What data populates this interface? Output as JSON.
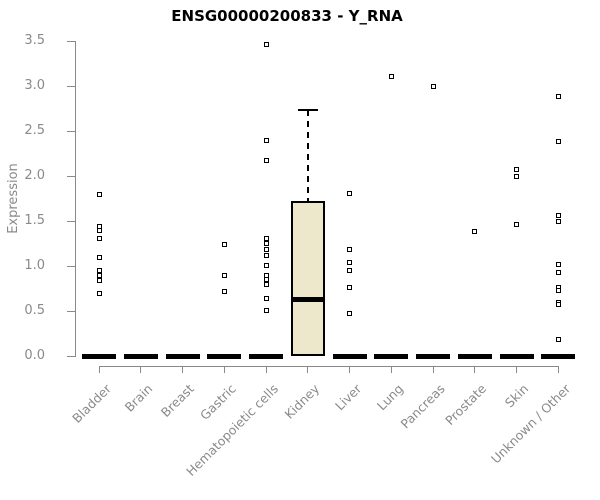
{
  "chart_data": {
    "type": "box",
    "title": "ENSG00000200833 - Y_RNA",
    "ylabel": "Expression",
    "xlabel": "",
    "ylim": [
      0,
      3.5
    ],
    "ytick_labels": [
      "0.0",
      "0.5",
      "1.0",
      "1.5",
      "2.0",
      "2.5",
      "3.0",
      "3.5"
    ],
    "grid": false,
    "legend": null,
    "point_symbol": "open-square",
    "colors": {
      "box_fill": "#EDE7CB",
      "box_border": "#000000",
      "axis": "#898989",
      "text": "#8A8A8A",
      "title": "#000000",
      "background": "#FFFFFF"
    },
    "categories": [
      "Bladder",
      "Brain",
      "Breast",
      "Gastric",
      "Hematopoietic cells",
      "Kidney",
      "Liver",
      "Lung",
      "Pancreas",
      "Prostate",
      "Skin",
      "Unknown / Other"
    ],
    "boxes": [
      {
        "category": "Bladder",
        "q1": 0,
        "median": 0,
        "q3": 0,
        "whisker_low": 0,
        "whisker_high": 0,
        "outliers": [
          1.79,
          1.44,
          1.39,
          1.31,
          1.1,
          0.95,
          0.89,
          0.84,
          0.69
        ]
      },
      {
        "category": "Brain",
        "q1": 0,
        "median": 0,
        "q3": 0,
        "whisker_low": 0,
        "whisker_high": 0,
        "outliers": []
      },
      {
        "category": "Breast",
        "q1": 0,
        "median": 0,
        "q3": 0,
        "whisker_low": 0,
        "whisker_high": 0,
        "outliers": []
      },
      {
        "category": "Gastric",
        "q1": 0,
        "median": 0,
        "q3": 0,
        "whisker_low": 0,
        "whisker_high": 0,
        "outliers": [
          1.24,
          0.89,
          0.72
        ]
      },
      {
        "category": "Hematopoietic cells",
        "q1": 0,
        "median": 0,
        "q3": 0,
        "whisker_low": 0,
        "whisker_high": 0,
        "outliers": [
          3.46,
          2.39,
          2.17,
          1.31,
          1.25,
          1.18,
          1.12,
          1.01,
          0.9,
          0.85,
          0.79,
          0.64,
          0.51
        ]
      },
      {
        "category": "Kidney",
        "q1": 0.02,
        "median": 0.63,
        "q3": 1.7,
        "whisker_low": 0.02,
        "whisker_high": 2.73,
        "outliers": []
      },
      {
        "category": "Liver",
        "q1": 0,
        "median": 0,
        "q3": 0,
        "whisker_low": 0,
        "whisker_high": 0,
        "outliers": [
          1.81,
          1.18,
          1.04,
          0.95,
          0.76,
          0.47
        ]
      },
      {
        "category": "Lung",
        "q1": 0,
        "median": 0,
        "q3": 0,
        "whisker_low": 0,
        "whisker_high": 0,
        "outliers": [
          3.11
        ]
      },
      {
        "category": "Pancreas",
        "q1": 0,
        "median": 0,
        "q3": 0,
        "whisker_low": 0,
        "whisker_high": 0,
        "outliers": [
          3.0
        ]
      },
      {
        "category": "Prostate",
        "q1": 0,
        "median": 0,
        "q3": 0,
        "whisker_low": 0,
        "whisker_high": 0,
        "outliers": [
          1.38
        ]
      },
      {
        "category": "Skin",
        "q1": 0,
        "median": 0,
        "q3": 0,
        "whisker_low": 0,
        "whisker_high": 0,
        "outliers": [
          2.07,
          1.99,
          1.46
        ]
      },
      {
        "category": "Unknown / Other",
        "q1": 0,
        "median": 0,
        "q3": 0,
        "whisker_low": 0,
        "whisker_high": 0,
        "outliers": [
          2.88,
          2.38,
          1.56,
          1.49,
          1.02,
          0.93,
          0.76,
          0.73,
          0.6,
          0.57,
          0.18
        ]
      }
    ]
  }
}
